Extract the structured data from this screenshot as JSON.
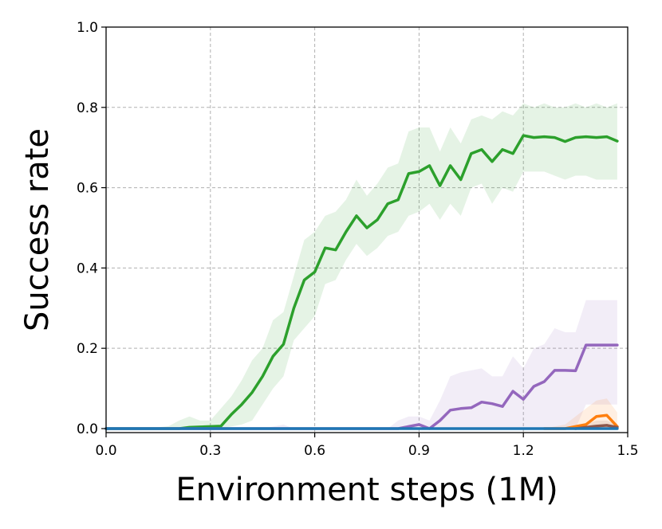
{
  "chart_data": {
    "type": "line",
    "title": "",
    "xlabel": "Environment steps (1M)",
    "ylabel": "Success rate",
    "xlim": [
      0.0,
      1.5
    ],
    "ylim": [
      -0.01,
      1.0
    ],
    "xticks": [
      "0.0",
      "0.3",
      "0.6",
      "0.9",
      "1.2",
      "1.5"
    ],
    "xtick_values": [
      0.0,
      0.3,
      0.6,
      0.9,
      1.2,
      1.5
    ],
    "yticks": [
      "0.0",
      "0.2",
      "0.4",
      "0.6",
      "0.8",
      "1.0"
    ],
    "ytick_values": [
      0.0,
      0.2,
      0.4,
      0.6,
      0.8,
      1.0
    ],
    "grid": true,
    "legend": "none",
    "series": [
      {
        "color": "#2ca02c",
        "fill_color": "#2ca02c",
        "x": [
          0.0,
          0.03,
          0.06,
          0.09,
          0.12,
          0.15,
          0.18,
          0.21,
          0.24,
          0.27,
          0.3,
          0.33,
          0.36,
          0.39,
          0.42,
          0.45,
          0.48,
          0.51,
          0.54,
          0.57,
          0.6,
          0.63,
          0.66,
          0.69,
          0.72,
          0.75,
          0.78,
          0.81,
          0.84,
          0.87,
          0.9,
          0.93,
          0.96,
          0.99,
          1.02,
          1.05,
          1.08,
          1.11,
          1.14,
          1.17,
          1.2,
          1.23,
          1.26,
          1.29,
          1.32,
          1.35,
          1.38,
          1.41,
          1.44,
          1.47
        ],
        "y": [
          0.0,
          0.0,
          0.0,
          0.0,
          0.0,
          0.0,
          0.0,
          0.0,
          0.003,
          0.004,
          0.005,
          0.006,
          0.035,
          0.06,
          0.09,
          0.13,
          0.18,
          0.21,
          0.3,
          0.37,
          0.39,
          0.45,
          0.445,
          0.49,
          0.53,
          0.5,
          0.52,
          0.56,
          0.57,
          0.635,
          0.64,
          0.655,
          0.605,
          0.655,
          0.62,
          0.685,
          0.695,
          0.665,
          0.695,
          0.685,
          0.73,
          0.725,
          0.727,
          0.725,
          0.715,
          0.725,
          0.727,
          0.725,
          0.727,
          0.716
        ],
        "lower": [
          0.0,
          0.0,
          0.0,
          0.0,
          0.0,
          0.0,
          0.0,
          0.0,
          0.0,
          0.0,
          0.0,
          0.0,
          0.005,
          0.01,
          0.02,
          0.06,
          0.1,
          0.13,
          0.22,
          0.25,
          0.28,
          0.36,
          0.37,
          0.42,
          0.46,
          0.43,
          0.45,
          0.48,
          0.49,
          0.53,
          0.54,
          0.56,
          0.52,
          0.56,
          0.53,
          0.6,
          0.61,
          0.56,
          0.6,
          0.59,
          0.64,
          0.64,
          0.64,
          0.63,
          0.62,
          0.63,
          0.63,
          0.62,
          0.62,
          0.62
        ],
        "upper": [
          0.0,
          0.0,
          0.0,
          0.0,
          0.0,
          0.003,
          0.006,
          0.02,
          0.03,
          0.02,
          0.02,
          0.05,
          0.08,
          0.12,
          0.17,
          0.2,
          0.27,
          0.29,
          0.38,
          0.47,
          0.49,
          0.53,
          0.54,
          0.57,
          0.62,
          0.58,
          0.61,
          0.65,
          0.66,
          0.74,
          0.75,
          0.75,
          0.69,
          0.75,
          0.71,
          0.77,
          0.78,
          0.77,
          0.79,
          0.78,
          0.81,
          0.8,
          0.81,
          0.8,
          0.8,
          0.81,
          0.8,
          0.81,
          0.8,
          0.81
        ]
      },
      {
        "color": "#9467bd",
        "fill_color": "#9467bd",
        "x": [
          0.0,
          0.03,
          0.06,
          0.09,
          0.12,
          0.15,
          0.18,
          0.21,
          0.24,
          0.27,
          0.3,
          0.33,
          0.36,
          0.39,
          0.42,
          0.45,
          0.48,
          0.51,
          0.54,
          0.57,
          0.6,
          0.63,
          0.66,
          0.69,
          0.72,
          0.75,
          0.78,
          0.81,
          0.84,
          0.87,
          0.9,
          0.93,
          0.96,
          0.99,
          1.02,
          1.05,
          1.08,
          1.11,
          1.14,
          1.17,
          1.2,
          1.23,
          1.26,
          1.29,
          1.32,
          1.35,
          1.38,
          1.41,
          1.44,
          1.47
        ],
        "y": [
          0.0,
          0.0,
          0.0,
          0.0,
          0.0,
          0.0,
          0.0,
          0.0,
          0.0,
          0.0,
          0.0,
          0.0,
          0.0,
          0.0,
          0.0,
          0.0,
          0.0,
          0.0,
          0.0,
          0.0,
          0.0,
          0.0,
          0.0,
          0.0,
          0.0,
          0.0,
          0.0,
          0.0,
          0.0,
          0.005,
          0.01,
          0.0,
          0.02,
          0.046,
          0.05,
          0.052,
          0.066,
          0.062,
          0.055,
          0.093,
          0.073,
          0.105,
          0.117,
          0.145,
          0.145,
          0.144,
          0.208,
          0.208,
          0.208,
          0.208
        ],
        "lower": [
          0.0,
          0.0,
          0.0,
          0.0,
          0.0,
          0.0,
          0.0,
          0.0,
          0.0,
          0.0,
          0.0,
          0.0,
          0.0,
          0.0,
          0.0,
          0.0,
          0.0,
          0.0,
          0.0,
          0.0,
          0.0,
          0.0,
          0.0,
          0.0,
          0.0,
          0.0,
          0.0,
          0.0,
          0.0,
          0.0,
          0.0,
          0.0,
          0.0,
          0.0,
          0.0,
          0.0,
          0.0,
          0.0,
          0.0,
          0.0,
          0.0,
          0.0,
          0.0,
          0.0,
          0.0,
          0.0,
          0.06,
          0.06,
          0.06,
          0.06
        ],
        "upper": [
          0.0,
          0.0,
          0.0,
          0.0,
          0.0,
          0.0,
          0.0,
          0.0,
          0.0,
          0.0,
          0.0,
          0.0,
          0.0,
          0.0,
          0.0,
          0.0,
          0.005,
          0.01,
          0.0,
          0.0,
          0.0,
          0.0,
          0.0,
          0.0,
          0.0,
          0.0,
          0.0,
          0.0,
          0.02,
          0.03,
          0.03,
          0.02,
          0.07,
          0.13,
          0.14,
          0.145,
          0.15,
          0.13,
          0.13,
          0.18,
          0.15,
          0.2,
          0.21,
          0.25,
          0.24,
          0.24,
          0.32,
          0.32,
          0.32,
          0.32
        ]
      },
      {
        "color": "#ff7f0e",
        "fill_color": "#ff7f0e",
        "x": [
          1.26,
          1.29,
          1.32,
          1.35,
          1.38,
          1.41,
          1.44,
          1.47
        ],
        "y": [
          0.0,
          0.0,
          0.0,
          0.005,
          0.01,
          0.03,
          0.033,
          0.005
        ],
        "lower": [
          0.0,
          0.0,
          0.0,
          0.0,
          0.0,
          0.0,
          0.0,
          0.0
        ],
        "upper": [
          0.0,
          0.005,
          0.01,
          0.03,
          0.05,
          0.07,
          0.075,
          0.04
        ]
      },
      {
        "color": "#8c564b",
        "fill_color": "#8c564b",
        "x": [
          1.35,
          1.38,
          1.41,
          1.44,
          1.47
        ],
        "y": [
          0.0,
          0.003,
          0.006,
          0.008,
          0.003
        ],
        "lower": [
          0.0,
          0.0,
          0.0,
          0.0,
          0.0
        ],
        "upper": [
          0.0,
          0.01,
          0.02,
          0.02,
          0.01
        ]
      },
      {
        "color": "#1f77b4",
        "fill_color": "#1f77b4",
        "x": [
          0.0,
          1.47
        ],
        "y": [
          0.0,
          0.0
        ],
        "lower": [
          0.0,
          0.0
        ],
        "upper": [
          0.0,
          0.0
        ]
      }
    ]
  }
}
